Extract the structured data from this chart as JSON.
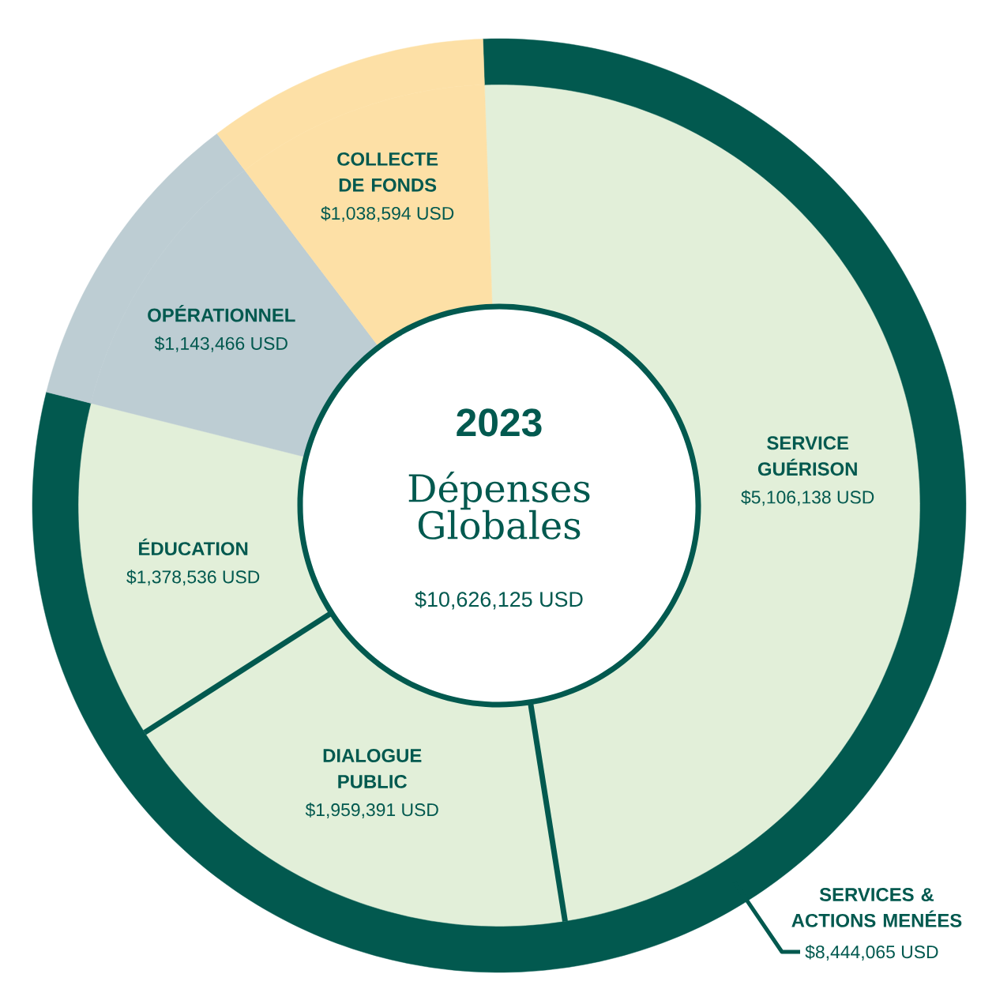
{
  "chart_data": [
    {
      "type": "donut",
      "title": "2023",
      "subtitle": "Dépenses Globales",
      "categories": [
        "SERVICE GUÉRISON",
        "DIALOGUE PUBLIC",
        "ÉDUCATION",
        "OPÉRATIONNEL",
        "COLLECTE DE FONDS"
      ],
      "values": [
        5106138,
        1959391,
        1378536,
        1143466,
        1038594
      ],
      "colors": [
        "#e2efd9",
        "#e2efd9",
        "#e2efd9",
        "#bdcdd3",
        "#fde0a6"
      ],
      "value_labels": [
        "$5,106,138 USD",
        "$1,959,391 USD",
        "$1,378,536 USD",
        "$1,143,466 USD",
        "$1,038,594 USD"
      ],
      "annotations": [
        "$10,626,125 USD"
      ]
    },
    {
      "type": "donut",
      "categories": [
        "SERVICES & ACTIONS MENÉES",
        null,
        null
      ],
      "values": [
        8444065,
        1143466,
        1038594
      ],
      "colors": [
        "#02594f",
        "#bdcdd3",
        "#fde0a6"
      ],
      "value_labels": [
        "$8,444,065 USD",
        null,
        null
      ]
    }
  ]
}
